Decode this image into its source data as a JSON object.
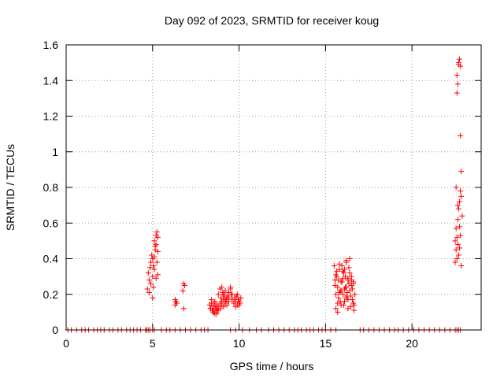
{
  "chart_data": {
    "type": "scatter",
    "title": "Day 092 of 2023, SRMTID for receiver koug",
    "xlabel": "GPS time / hours",
    "ylabel": "SRMTID / TECUs",
    "xlim": [
      0,
      24
    ],
    "ylim": [
      0,
      1.6
    ],
    "xticks": [
      0,
      5,
      10,
      15,
      20
    ],
    "xtick_labels": [
      "0",
      "5",
      "10",
      "15",
      "20"
    ],
    "yticks": [
      0,
      0.2,
      0.4,
      0.6,
      0.8,
      1,
      1.2,
      1.4,
      1.6
    ],
    "ytick_labels": [
      "0",
      "0.2",
      "0.4",
      "0.6",
      "0.8",
      "1",
      "1.2",
      "1.4",
      "1.6"
    ],
    "grid": true,
    "marker": "+",
    "color": "#ff0000",
    "x": [
      0.1,
      0.3,
      0.6,
      0.9,
      1.1,
      1.3,
      1.6,
      1.8,
      2.0,
      2.2,
      2.5,
      2.7,
      3.0,
      3.2,
      3.5,
      3.7,
      3.9,
      4.1,
      4.3,
      4.6,
      4.65,
      4.75,
      4.85,
      5.0,
      5.1,
      5.5,
      5.8,
      6.0,
      6.3,
      6.6,
      6.9,
      7.2,
      7.5,
      7.8,
      8.0,
      8.2,
      9.5,
      9.8,
      10.2,
      10.6,
      11.0,
      11.3,
      11.7,
      12.0,
      12.3,
      12.6,
      12.9,
      13.2,
      13.4,
      13.6,
      13.9,
      14.1,
      14.3,
      14.6,
      14.8,
      15.0,
      15.3,
      15.6,
      17.0,
      17.2,
      17.5,
      17.8,
      18.1,
      18.4,
      18.7,
      19.0,
      19.2,
      19.5,
      19.8,
      20.1,
      20.4,
      20.7,
      21.0,
      21.3,
      21.6,
      21.9,
      22.2,
      22.5,
      22.6,
      22.7,
      22.8,
      4.7,
      4.75,
      4.8,
      4.85,
      4.9,
      4.95,
      5.0,
      5.0,
      5.05,
      5.1,
      5.1,
      5.15,
      5.2,
      5.2,
      5.25,
      5.3,
      5.3,
      4.8,
      4.9,
      5.0,
      5.1,
      5.2,
      5.25,
      5.3,
      5.05,
      5.15,
      6.3,
      6.35,
      6.4,
      6.3,
      6.75,
      6.8,
      6.85,
      6.8,
      8.3,
      8.35,
      8.4,
      8.45,
      8.5,
      8.55,
      8.6,
      8.65,
      8.7,
      8.75,
      8.8,
      8.4,
      8.5,
      8.6,
      8.7,
      8.8,
      8.9,
      8.95,
      9.0,
      9.05,
      9.1,
      9.15,
      9.2,
      9.25,
      9.3,
      8.9,
      9.0,
      9.1,
      9.2,
      9.3,
      9.4,
      9.5,
      9.55,
      9.6,
      9.4,
      9.5,
      9.7,
      9.75,
      9.8,
      9.85,
      9.9,
      9.95,
      10.0,
      10.05,
      10.1,
      9.8,
      9.9,
      10.0,
      8.5,
      8.7,
      8.9,
      9.1,
      9.3,
      8.35,
      8.6,
      8.8,
      9.0,
      9.2,
      9.4,
      9.6,
      15.5,
      15.55,
      15.6,
      15.65,
      15.7,
      15.75,
      15.8,
      15.85,
      15.9,
      15.95,
      16.0,
      16.05,
      16.1,
      16.15,
      16.2,
      16.25,
      16.3,
      16.35,
      16.4,
      16.45,
      16.5,
      16.55,
      16.6,
      16.65,
      16.7,
      15.6,
      15.7,
      15.8,
      15.9,
      16.0,
      16.1,
      16.2,
      16.3,
      16.4,
      16.5,
      16.6,
      15.55,
      15.65,
      15.75,
      15.85,
      15.95,
      16.05,
      16.15,
      16.25,
      16.35,
      16.45,
      16.55,
      16.65,
      15.6,
      15.8,
      16.0,
      16.2,
      16.4,
      16.6,
      15.7,
      15.9,
      16.1,
      16.3,
      16.5,
      16.2,
      16.3,
      22.5,
      22.55,
      22.6,
      22.65,
      22.7,
      22.75,
      22.8,
      22.85,
      22.5,
      22.55,
      22.6,
      22.65,
      22.7,
      22.75,
      22.8,
      22.85,
      22.9,
      22.6,
      22.7,
      22.8,
      22.65,
      22.75,
      22.85,
      22.6,
      22.7,
      22.8,
      22.55,
      22.65,
      22.75
    ],
    "y": [
      0,
      0,
      0,
      0,
      0,
      0,
      0,
      0,
      0,
      0,
      0,
      0,
      0,
      0,
      0,
      0,
      0,
      0,
      0,
      0,
      0,
      0,
      0,
      0,
      0,
      0,
      0,
      0,
      0,
      0,
      0,
      0,
      0,
      0,
      0,
      0,
      0,
      0,
      0,
      0,
      0,
      0,
      0,
      0,
      0,
      0,
      0,
      0,
      0,
      0,
      0,
      0,
      0,
      0,
      0,
      0,
      0,
      0,
      0,
      0,
      0,
      0,
      0,
      0,
      0,
      0,
      0,
      0,
      0,
      0,
      0,
      0,
      0,
      0,
      0,
      0,
      0,
      0,
      0,
      0,
      0,
      0.23,
      0.32,
      0.28,
      0.35,
      0.38,
      0.42,
      0.3,
      0.4,
      0.36,
      0.41,
      0.5,
      0.45,
      0.53,
      0.48,
      0.55,
      0.52,
      0.44,
      0.21,
      0.26,
      0.18,
      0.34,
      0.29,
      0.38,
      0.31,
      0.24,
      0.47,
      0.14,
      0.16,
      0.15,
      0.17,
      0.22,
      0.26,
      0.25,
      0.12,
      0.14,
      0.12,
      0.15,
      0.11,
      0.13,
      0.1,
      0.14,
      0.12,
      0.09,
      0.11,
      0.13,
      0.17,
      0.15,
      0.16,
      0.14,
      0.2,
      0.23,
      0.18,
      0.16,
      0.21,
      0.13,
      0.19,
      0.15,
      0.17,
      0.14,
      0.12,
      0.24,
      0.2,
      0.22,
      0.18,
      0.16,
      0.23,
      0.2,
      0.17,
      0.21,
      0.24,
      0.15,
      0.18,
      0.16,
      0.19,
      0.14,
      0.17,
      0.16,
      0.15,
      0.18,
      0.13,
      0.2,
      0.14,
      0.1,
      0.12,
      0.15,
      0.17,
      0.19,
      0.12,
      0.09,
      0.11,
      0.14,
      0.16,
      0.18,
      0.2,
      0.36,
      0.28,
      0.12,
      0.3,
      0.24,
      0.18,
      0.34,
      0.22,
      0.14,
      0.27,
      0.2,
      0.32,
      0.16,
      0.24,
      0.38,
      0.19,
      0.29,
      0.35,
      0.22,
      0.13,
      0.3,
      0.17,
      0.26,
      0.14,
      0.2,
      0.31,
      0.1,
      0.21,
      0.27,
      0.33,
      0.23,
      0.18,
      0.28,
      0.4,
      0.25,
      0.15,
      0.25,
      0.33,
      0.28,
      0.16,
      0.36,
      0.14,
      0.3,
      0.21,
      0.26,
      0.19,
      0.23,
      0.11,
      0.2,
      0.37,
      0.29,
      0.24,
      0.32,
      0.27,
      0.15,
      0.22,
      0.34,
      0.12,
      0.28,
      0.39,
      0.17,
      0.5,
      0.57,
      0.52,
      0.62,
      0.68,
      0.72,
      0.78,
      0.75,
      0.38,
      0.45,
      0.4,
      0.48,
      0.42,
      0.46,
      0.53,
      0.36,
      0.64,
      1.33,
      1.49,
      1.09,
      1.38,
      1.52,
      0.89,
      1.43,
      1.5,
      1.48,
      0.8,
      0.7,
      0.58
    ]
  }
}
